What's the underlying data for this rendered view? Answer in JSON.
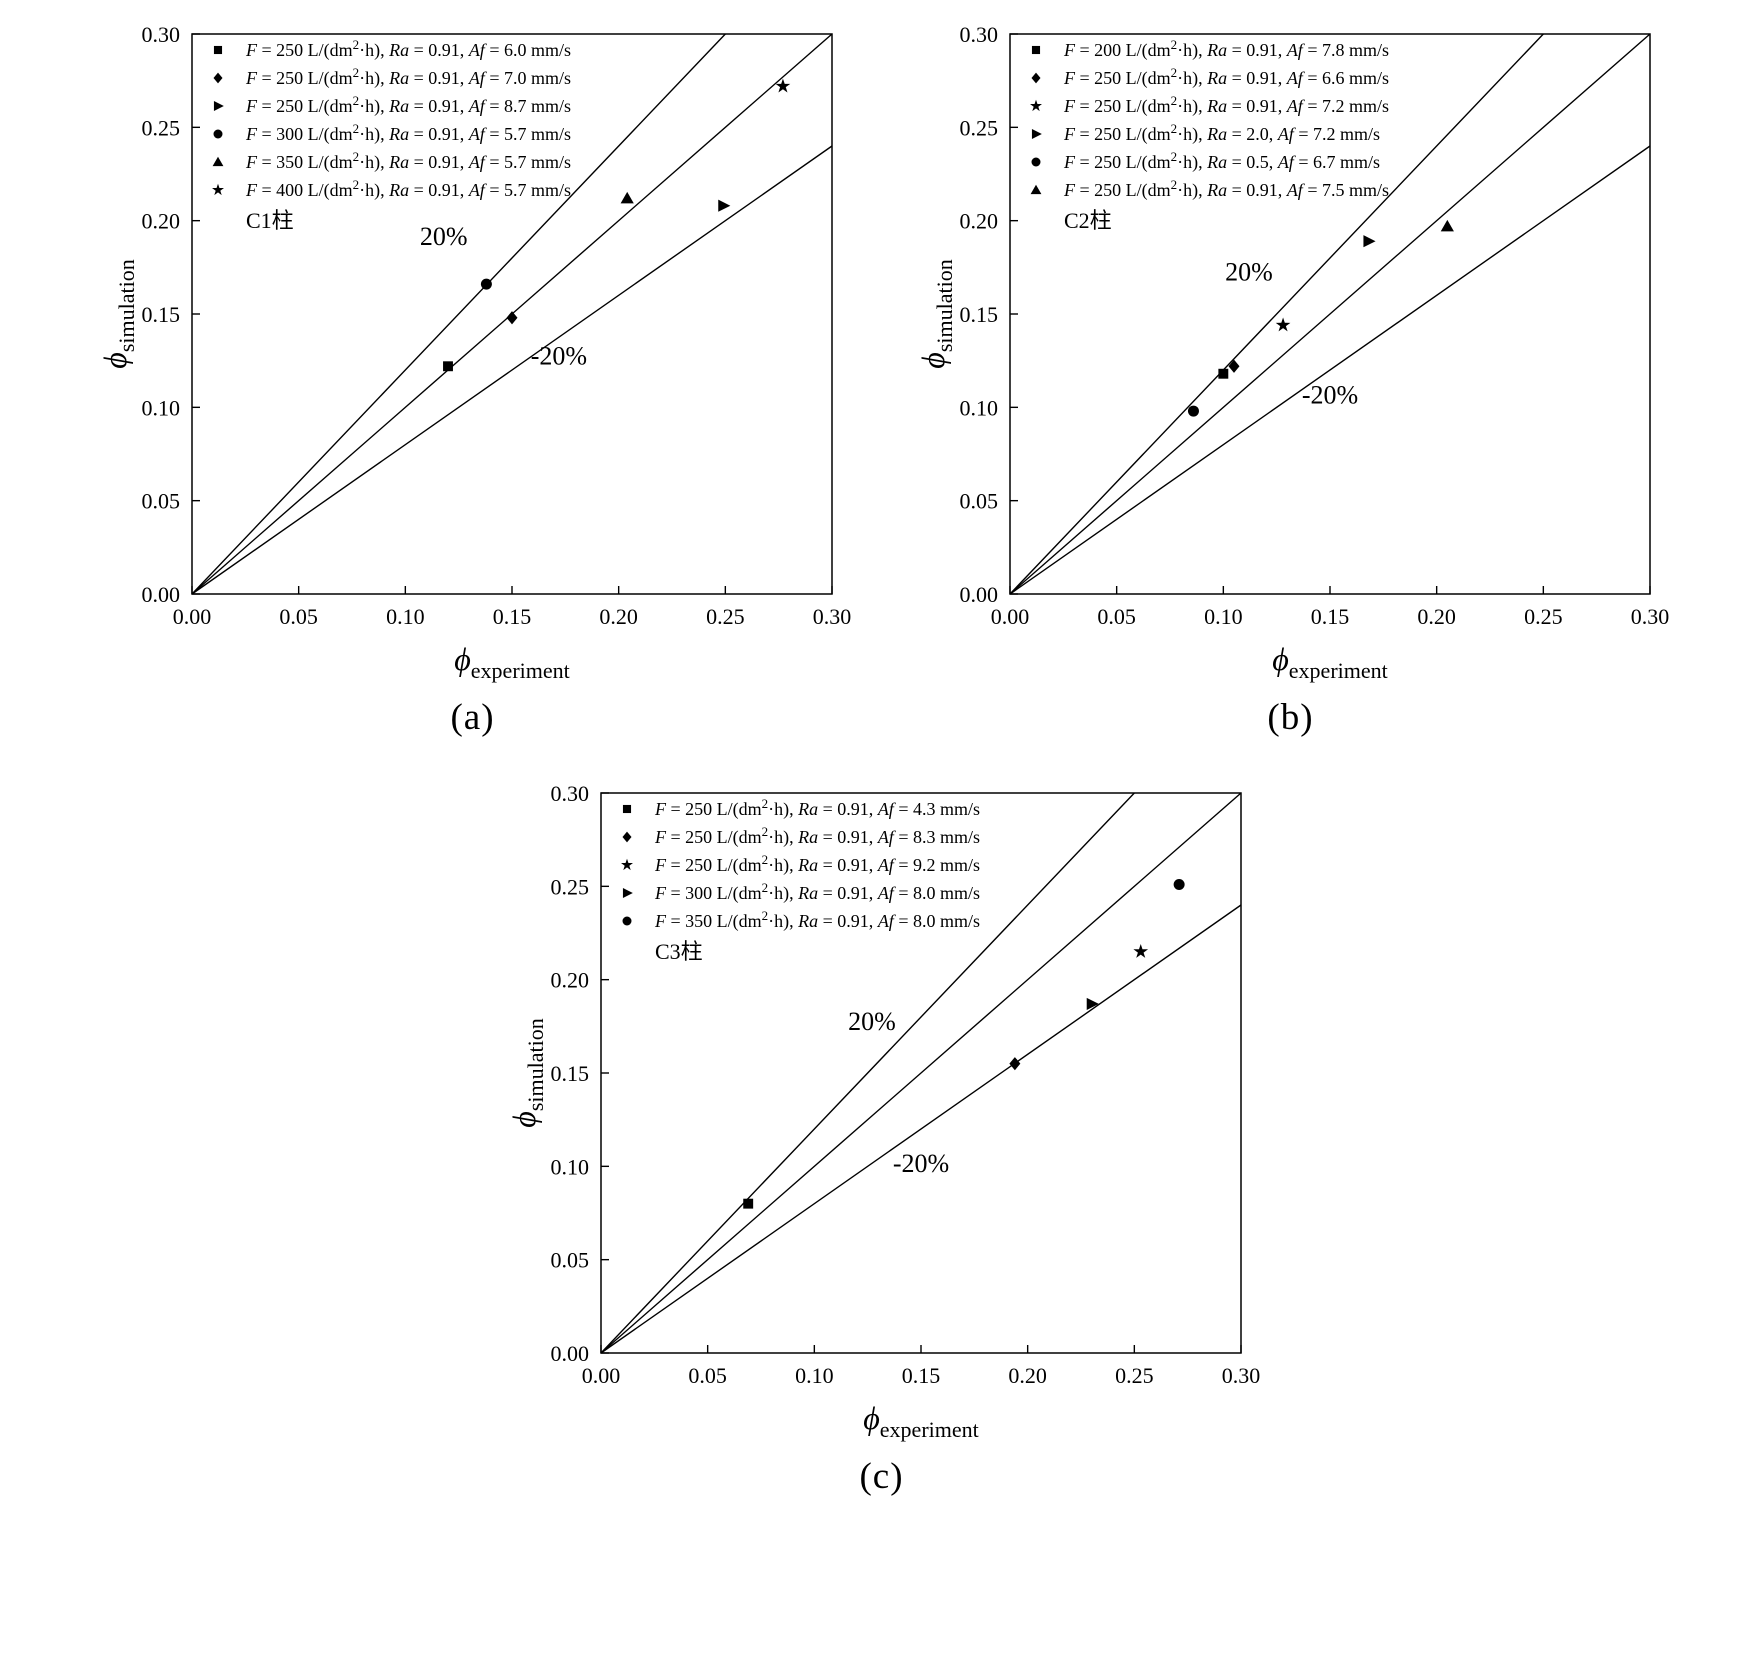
{
  "legend_template": {
    "f_label": "F",
    "equals": " = ",
    "f_unit_pre": " L/(dm",
    "f_unit_sup": "2",
    "f_unit_post": "·h), ",
    "ra_label": "Ra",
    "separator": ", ",
    "af_label": "Af",
    "af_unit": " mm/s"
  },
  "chart_data": [
    {
      "type": "scatter",
      "caption": "(a)",
      "title": "C1柱",
      "xlabel": {
        "symbol": "ϕ",
        "sub": "experiment"
      },
      "ylabel": {
        "symbol": "ϕ",
        "sub": "simulation"
      },
      "xlim": [
        0,
        0.3
      ],
      "ylim": [
        0,
        0.3
      ],
      "grid": false,
      "legend_position": "top-left",
      "ticks": {
        "values": [
          0,
          0.05,
          0.1,
          0.15,
          0.2,
          0.25,
          0.3
        ],
        "labels": [
          "0.00",
          "0.05",
          "0.10",
          "0.15",
          "0.20",
          "0.25",
          "0.30"
        ]
      },
      "ref_lines": [
        {
          "slope": 1.2,
          "label": "20%"
        },
        {
          "slope": 1.0,
          "label": "parity"
        },
        {
          "slope": 0.8,
          "label": "-20%"
        }
      ],
      "annotations": [
        {
          "text": "20%",
          "x": 0.118,
          "y": 0.187
        },
        {
          "text": "-20%",
          "x": 0.172,
          "y": 0.123
        }
      ],
      "series": [
        {
          "marker": "square",
          "F": "250",
          "Ra": "0.91",
          "Af": "6.0",
          "points": [
            [
              0.12,
              0.122
            ]
          ]
        },
        {
          "marker": "diamond",
          "F": "250",
          "Ra": "0.91",
          "Af": "7.0",
          "points": [
            [
              0.15,
              0.148
            ]
          ]
        },
        {
          "marker": "triangle-right",
          "F": "250",
          "Ra": "0.91",
          "Af": "8.7",
          "points": [
            [
              0.249,
              0.208
            ]
          ]
        },
        {
          "marker": "circle",
          "F": "300",
          "Ra": "0.91",
          "Af": "5.7",
          "points": [
            [
              0.138,
              0.166
            ]
          ]
        },
        {
          "marker": "triangle-up",
          "F": "350",
          "Ra": "0.91",
          "Af": "5.7",
          "points": [
            [
              0.204,
              0.212
            ]
          ]
        },
        {
          "marker": "star",
          "F": "400",
          "Ra": "0.91",
          "Af": "5.7",
          "points": [
            [
              0.277,
              0.272
            ]
          ]
        }
      ]
    },
    {
      "type": "scatter",
      "caption": "(b)",
      "title": "C2柱",
      "xlabel": {
        "symbol": "ϕ",
        "sub": "experiment"
      },
      "ylabel": {
        "symbol": "ϕ",
        "sub": "simulation"
      },
      "xlim": [
        0,
        0.3
      ],
      "ylim": [
        0,
        0.3
      ],
      "grid": false,
      "legend_position": "top-left",
      "ticks": {
        "values": [
          0,
          0.05,
          0.1,
          0.15,
          0.2,
          0.25,
          0.3
        ],
        "labels": [
          "0.00",
          "0.05",
          "0.10",
          "0.15",
          "0.20",
          "0.25",
          "0.30"
        ]
      },
      "ref_lines": [
        {
          "slope": 1.2,
          "label": "20%"
        },
        {
          "slope": 1.0,
          "label": "parity"
        },
        {
          "slope": 0.8,
          "label": "-20%"
        }
      ],
      "annotations": [
        {
          "text": "20%",
          "x": 0.112,
          "y": 0.168
        },
        {
          "text": "-20%",
          "x": 0.15,
          "y": 0.102
        }
      ],
      "series": [
        {
          "marker": "square",
          "F": "200",
          "Ra": "0.91",
          "Af": "7.8",
          "points": [
            [
              0.1,
              0.118
            ]
          ]
        },
        {
          "marker": "diamond",
          "F": "250",
          "Ra": "0.91",
          "Af": "6.6",
          "points": [
            [
              0.105,
              0.122
            ]
          ]
        },
        {
          "marker": "star",
          "F": "250",
          "Ra": "0.91",
          "Af": "7.2",
          "points": [
            [
              0.128,
              0.144
            ]
          ]
        },
        {
          "marker": "triangle-right",
          "F": "250",
          "Ra": "2.0",
          "Af": "7.2",
          "points": [
            [
              0.168,
              0.189
            ]
          ]
        },
        {
          "marker": "circle",
          "F": "250",
          "Ra": "0.5",
          "Af": "6.7",
          "points": [
            [
              0.086,
              0.098
            ]
          ]
        },
        {
          "marker": "triangle-up",
          "F": "250",
          "Ra": "0.91",
          "Af": "7.5",
          "points": [
            [
              0.205,
              0.197
            ]
          ]
        }
      ]
    },
    {
      "type": "scatter",
      "caption": "(c)",
      "title": "C3柱",
      "xlabel": {
        "symbol": "ϕ",
        "sub": "experiment"
      },
      "ylabel": {
        "symbol": "ϕ",
        "sub": "simulation"
      },
      "xlim": [
        0,
        0.3
      ],
      "ylim": [
        0,
        0.3
      ],
      "grid": false,
      "legend_position": "top-left",
      "ticks": {
        "values": [
          0,
          0.05,
          0.1,
          0.15,
          0.2,
          0.25,
          0.3
        ],
        "labels": [
          "0.00",
          "0.05",
          "0.10",
          "0.15",
          "0.20",
          "0.25",
          "0.30"
        ]
      },
      "ref_lines": [
        {
          "slope": 1.2,
          "label": "20%"
        },
        {
          "slope": 1.0,
          "label": "parity"
        },
        {
          "slope": 0.8,
          "label": "-20%"
        }
      ],
      "annotations": [
        {
          "text": "20%",
          "x": 0.127,
          "y": 0.173
        },
        {
          "text": "-20%",
          "x": 0.15,
          "y": 0.097
        }
      ],
      "series": [
        {
          "marker": "square",
          "F": "250",
          "Ra": "0.91",
          "Af": "4.3",
          "points": [
            [
              0.069,
              0.08
            ]
          ]
        },
        {
          "marker": "diamond",
          "F": "250",
          "Ra": "0.91",
          "Af": "8.3",
          "points": [
            [
              0.194,
              0.155
            ]
          ]
        },
        {
          "marker": "star",
          "F": "250",
          "Ra": "0.91",
          "Af": "9.2",
          "points": [
            [
              0.253,
              0.215
            ]
          ]
        },
        {
          "marker": "triangle-right",
          "F": "300",
          "Ra": "0.91",
          "Af": "8.0",
          "points": [
            [
              0.23,
              0.187
            ]
          ]
        },
        {
          "marker": "circle",
          "F": "350",
          "Ra": "0.91",
          "Af": "8.0",
          "points": [
            [
              0.271,
              0.251
            ]
          ]
        }
      ]
    }
  ]
}
